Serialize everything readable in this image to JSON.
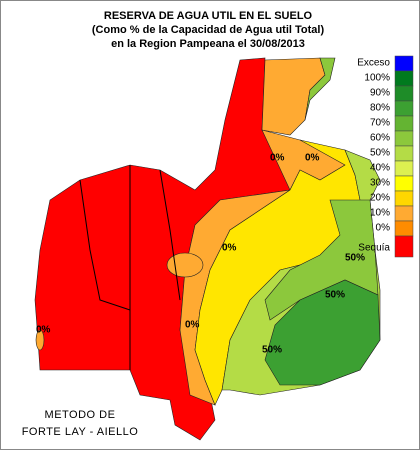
{
  "title": [
    "RESERVA DE AGUA UTIL EN EL SUELO",
    "(Como % de la Capacidad de Agua util Total)",
    "en la Region Pampeana el 30/08/2013"
  ],
  "legend": [
    {
      "label": "Exceso",
      "color": "#0000ff"
    },
    {
      "label": "100%",
      "color": "#007a1e"
    },
    {
      "label": "90%",
      "color": "#1e8c28"
    },
    {
      "label": "80%",
      "color": "#3ca032"
    },
    {
      "label": "70%",
      "color": "#64b432"
    },
    {
      "label": "60%",
      "color": "#8cc83c"
    },
    {
      "label": "50%",
      "color": "#b4dc46"
    },
    {
      "label": "40%",
      "color": "#dcf050"
    },
    {
      "label": "30%",
      "color": "#ffff00"
    },
    {
      "label": "20%",
      "color": "#ffd700"
    },
    {
      "label": "10%",
      "color": "#ffaa32"
    },
    {
      "label": "0%",
      "color": "#ff8c00"
    },
    {
      "label": "Sequía",
      "color": "#ff0000"
    }
  ],
  "contour_labels": [
    "0%",
    "0%",
    "0%",
    "0%",
    "0%",
    "50%",
    "50%",
    "50%"
  ],
  "footer": [
    "METODO DE",
    "FORTE LAY - AIELLO"
  ]
}
